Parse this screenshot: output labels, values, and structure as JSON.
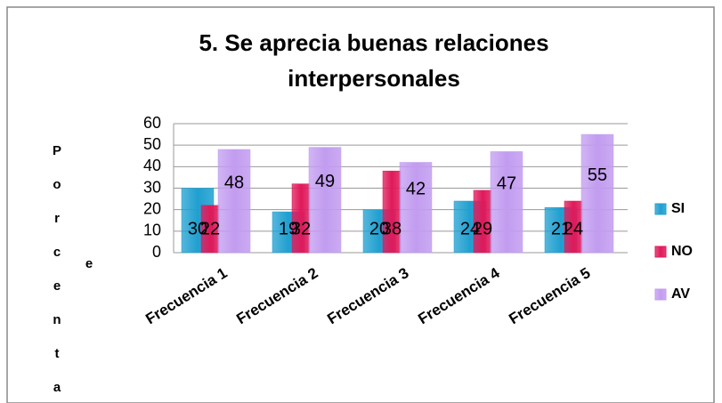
{
  "chart_data": {
    "type": "bar",
    "title": [
      "5. Se aprecia buenas relaciones",
      "interpersonales"
    ],
    "ylabel": "Porcenta",
    "annotations": [
      "e"
    ],
    "categories": [
      "Frecuencia 1",
      "Frecuencia 2",
      "Frecuencia 3",
      "Frecuencia 4",
      "Frecuencia 5"
    ],
    "series": [
      {
        "name": "SI",
        "color": "#1f9fd0",
        "values": [
          30,
          19,
          20,
          24,
          21
        ]
      },
      {
        "name": "NO",
        "color": "#e0195a",
        "values": [
          22,
          32,
          38,
          29,
          24
        ]
      },
      {
        "name": "AV",
        "color": "#c29cf0",
        "values": [
          48,
          49,
          42,
          47,
          55
        ]
      }
    ],
    "ylim": [
      0,
      60
    ],
    "yticks": [
      0,
      10,
      20,
      30,
      40,
      50,
      60
    ],
    "grid": true,
    "legend": "right"
  }
}
